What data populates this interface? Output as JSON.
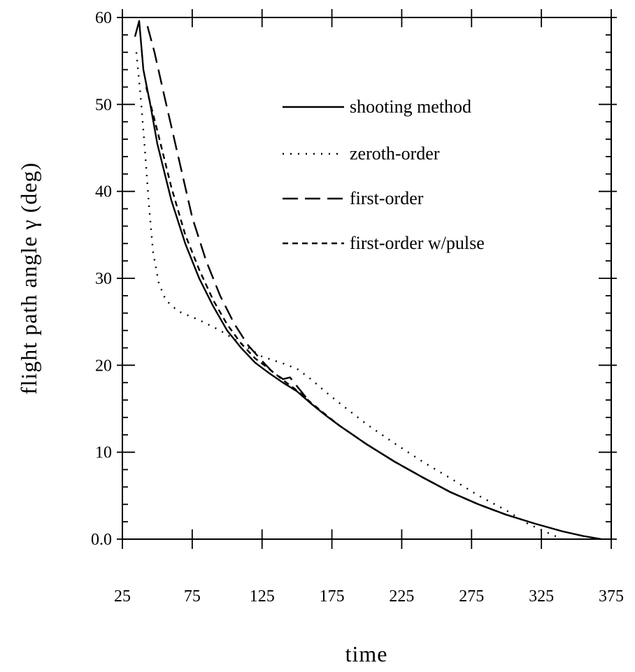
{
  "chart_data": {
    "type": "line",
    "title": "",
    "xlabel": "time",
    "ylabel": "flight path angle γ  (deg)",
    "xlim": [
      25,
      375
    ],
    "ylim": [
      0,
      60
    ],
    "x_ticks": [
      "25",
      "75",
      "125",
      "175",
      "225",
      "275",
      "325",
      "375"
    ],
    "y_ticks": [
      "0.0",
      "10",
      "20",
      "30",
      "40",
      "50",
      "60"
    ],
    "grid": false,
    "legend_position": "top-right",
    "series": [
      {
        "name": "shooting method",
        "dash": "solid",
        "points": [
          [
            34,
            57.8
          ],
          [
            37,
            59.6
          ],
          [
            40,
            54
          ],
          [
            45,
            50
          ],
          [
            50,
            45.5
          ],
          [
            60,
            39
          ],
          [
            70,
            34
          ],
          [
            80,
            30
          ],
          [
            90,
            26.8
          ],
          [
            100,
            24
          ],
          [
            110,
            22
          ],
          [
            120,
            20.3
          ],
          [
            130,
            19.1
          ],
          [
            140,
            18
          ],
          [
            150,
            17
          ],
          [
            160,
            15.6
          ],
          [
            170,
            14.3
          ],
          [
            180,
            13.1
          ],
          [
            200,
            10.9
          ],
          [
            220,
            8.9
          ],
          [
            240,
            7.1
          ],
          [
            260,
            5.4
          ],
          [
            280,
            4
          ],
          [
            300,
            2.8
          ],
          [
            320,
            1.8
          ],
          [
            340,
            0.9
          ],
          [
            355,
            0.35
          ],
          [
            368,
            0
          ]
        ]
      },
      {
        "name": "zeroth-order",
        "dash": "dotted",
        "points": [
          [
            35,
            56
          ],
          [
            38,
            51
          ],
          [
            41,
            45
          ],
          [
            44,
            38.5
          ],
          [
            47,
            33
          ],
          [
            51,
            29.5
          ],
          [
            56,
            27.5
          ],
          [
            65,
            26.2
          ],
          [
            80,
            25.2
          ],
          [
            95,
            24
          ],
          [
            110,
            22.5
          ],
          [
            125,
            21
          ],
          [
            140,
            20.2
          ],
          [
            150,
            19.6
          ],
          [
            160,
            18.4
          ],
          [
            170,
            17
          ],
          [
            180,
            15.7
          ],
          [
            200,
            13.2
          ],
          [
            220,
            11
          ],
          [
            240,
            8.9
          ],
          [
            260,
            7
          ],
          [
            280,
            5
          ],
          [
            300,
            3.3
          ],
          [
            315,
            1.8
          ],
          [
            330,
            0.7
          ],
          [
            340,
            0
          ]
        ]
      },
      {
        "name": "first-order",
        "dash": "dashed",
        "points": [
          [
            43,
            59
          ],
          [
            48,
            56
          ],
          [
            55,
            51
          ],
          [
            65,
            44
          ],
          [
            75,
            37
          ],
          [
            85,
            32
          ],
          [
            95,
            28
          ],
          [
            105,
            24.8
          ],
          [
            115,
            22.3
          ],
          [
            125,
            20.5
          ],
          [
            132,
            19.3
          ],
          [
            140,
            18.4
          ],
          [
            145,
            18.6
          ],
          [
            150,
            17.6
          ],
          [
            160,
            15.6
          ],
          [
            170,
            14.3
          ],
          [
            180,
            13.1
          ],
          [
            200,
            10.9
          ],
          [
            220,
            8.9
          ],
          [
            240,
            7.1
          ],
          [
            260,
            5.4
          ],
          [
            280,
            4
          ],
          [
            300,
            2.8
          ]
        ]
      },
      {
        "name": "first-order w/pulse",
        "dash": "short-dashed",
        "points": [
          [
            42,
            52
          ],
          [
            50,
            47
          ],
          [
            60,
            40.5
          ],
          [
            70,
            35
          ],
          [
            80,
            31
          ],
          [
            90,
            27.5
          ],
          [
            100,
            24.7
          ],
          [
            110,
            22.5
          ],
          [
            120,
            20.8
          ],
          [
            130,
            19.6
          ],
          [
            140,
            18.3
          ],
          [
            150,
            17.1
          ],
          [
            160,
            15.7
          ],
          [
            170,
            14.4
          ],
          [
            180,
            13.1
          ],
          [
            200,
            10.9
          ],
          [
            220,
            8.9
          ],
          [
            240,
            7.1
          ],
          [
            260,
            5.4
          ],
          [
            280,
            4
          ],
          [
            300,
            2.8
          ]
        ]
      }
    ]
  }
}
